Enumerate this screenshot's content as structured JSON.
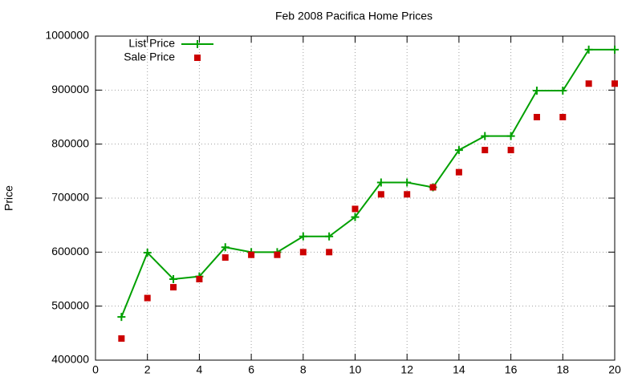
{
  "chart_data": {
    "type": "line",
    "title": "Feb 2008 Pacifica Home Prices",
    "y_label": "Price",
    "x": [
      1,
      2,
      3,
      4,
      5,
      6,
      7,
      8,
      9,
      10,
      11,
      12,
      13,
      14,
      15,
      16,
      17,
      18,
      19,
      20
    ],
    "series": [
      {
        "name": "List Price",
        "color": "#00a000",
        "style": "linespoints",
        "values": [
          480000,
          599000,
          550000,
          555000,
          609000,
          600000,
          600000,
          629000,
          629000,
          665000,
          729000,
          729000,
          720000,
          789000,
          815000,
          815000,
          899000,
          899000,
          975000,
          975000
        ]
      },
      {
        "name": "Sale Price",
        "color": "#cc0000",
        "style": "points",
        "values": [
          440000,
          515000,
          535000,
          550000,
          590000,
          595000,
          595000,
          600000,
          600000,
          680000,
          707000,
          707000,
          720000,
          748000,
          789000,
          789000,
          850000,
          850000,
          912000,
          912000
        ]
      }
    ],
    "xlim": [
      0,
      20
    ],
    "xticks": [
      0,
      2,
      4,
      6,
      8,
      10,
      12,
      14,
      16,
      18,
      20
    ],
    "ylim": [
      400000,
      1000000
    ],
    "yticks": [
      400000,
      500000,
      600000,
      700000,
      800000,
      900000,
      1000000
    ],
    "grid": true,
    "legend": "top-left"
  }
}
